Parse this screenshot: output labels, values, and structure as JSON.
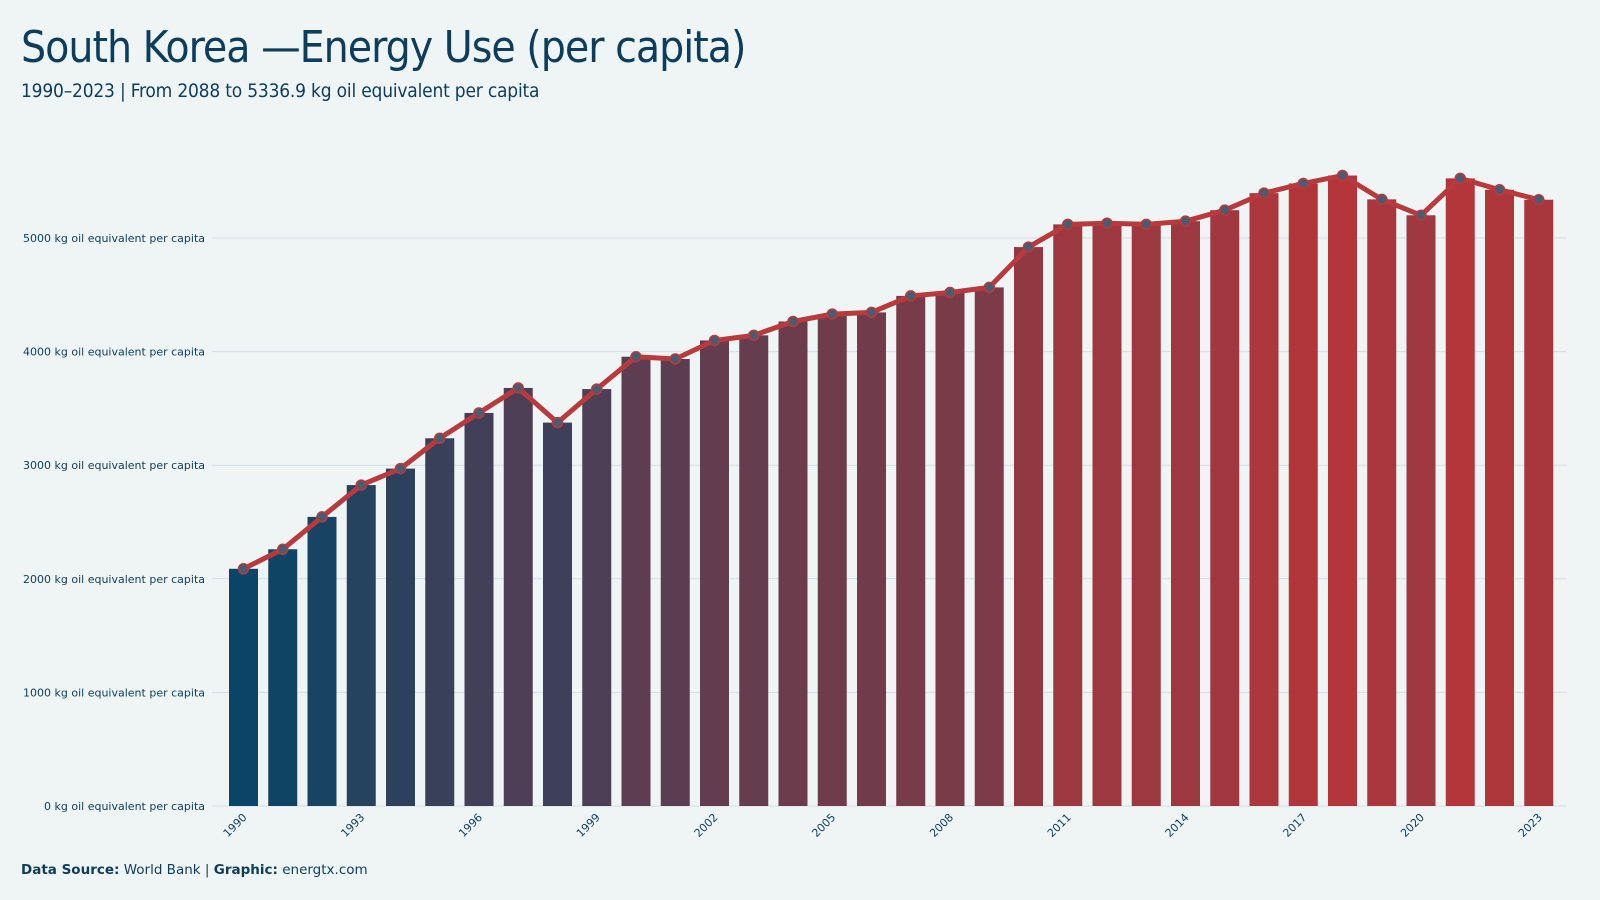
{
  "header": {
    "title": "South Korea —Energy Use (per capita)",
    "subtitle": "1990–2023 | From 2088 to 5336.9 kg oil equivalent per capita"
  },
  "footer": {
    "source_label": "Data Source:",
    "source_value": "World Bank",
    "separator": "|",
    "graphic_label": "Graphic:",
    "graphic_value": "energtx.com"
  },
  "colors": {
    "background": "#eff5f5",
    "text": "#0c3d5c",
    "bar_start": "#0a4466",
    "bar_end": "#b5363a",
    "line": "#b83a3c",
    "marker_fill": "#4d5a70",
    "grid": "#d4dde0"
  },
  "chart_data": {
    "type": "bar",
    "title": "South Korea —Energy Use (per capita)",
    "subtitle": "1990–2023 | From 2088 to 5336.9 kg oil equivalent per capita",
    "ylabel": "",
    "xlabel": "",
    "ylim": [
      0,
      5600
    ],
    "grid": true,
    "y_ticks": [
      0,
      1000,
      2000,
      3000,
      4000,
      5000
    ],
    "y_tick_suffix": " kg oil equivalent per capita",
    "x_tick_labels": [
      "1990",
      "1993",
      "1996",
      "1999",
      "2002",
      "2005",
      "2008",
      "2011",
      "2014",
      "2017",
      "2020",
      "2023"
    ],
    "categories": [
      "1990",
      "1991",
      "1992",
      "1993",
      "1994",
      "1995",
      "1996",
      "1997",
      "1998",
      "1999",
      "2000",
      "2001",
      "2002",
      "2003",
      "2004",
      "2005",
      "2006",
      "2007",
      "2008",
      "2009",
      "2010",
      "2011",
      "2012",
      "2013",
      "2014",
      "2015",
      "2016",
      "2017",
      "2018",
      "2019",
      "2020",
      "2021",
      "2022",
      "2023"
    ],
    "values": [
      2088,
      2260,
      2545,
      2825,
      2970,
      3237,
      3460,
      3680,
      3375,
      3670,
      3955,
      3935,
      4098,
      4143,
      4265,
      4330,
      4345,
      4490,
      4520,
      4565,
      4920,
      5120,
      5130,
      5120,
      5148,
      5245,
      5395,
      5480,
      5550,
      5340,
      5200,
      5525,
      5425,
      5336.9
    ],
    "overlay": "line with circle markers over bars"
  }
}
